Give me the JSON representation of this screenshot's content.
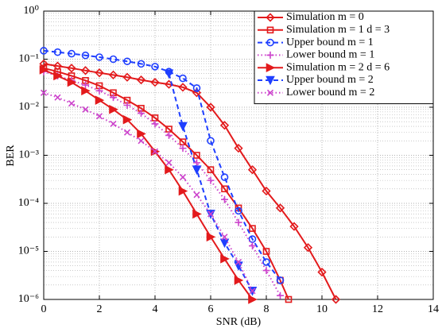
{
  "chart_data": {
    "type": "line",
    "x_label": "SNR (dB)",
    "y_label": "BER",
    "xlim": [
      0,
      14
    ],
    "xticks": [
      0,
      2,
      4,
      6,
      8,
      10,
      12,
      14
    ],
    "ylim": [
      1e-06,
      1
    ],
    "log_y": true,
    "grid": true,
    "legend": "upper right",
    "yticks": [
      {
        "value": 1,
        "label": "10⁰"
      },
      {
        "value": 0.1,
        "label": "10⁻¹"
      },
      {
        "value": 0.01,
        "label": "10⁻²"
      },
      {
        "value": 0.001,
        "label": "10⁻³"
      },
      {
        "value": 0.0001,
        "label": "10⁻⁴"
      },
      {
        "value": 1e-05,
        "label": "10⁻⁵"
      },
      {
        "value": 1e-06,
        "label": "10⁻⁶"
      }
    ],
    "series": [
      {
        "name": "Simulation m = 0",
        "color": "#e31a1c",
        "marker": "diamond",
        "linestyle": "solid",
        "x": [
          0,
          0.5,
          1,
          1.5,
          2,
          2.5,
          3,
          3.5,
          4,
          4.5,
          5,
          5.5,
          6,
          6.5,
          7,
          7.5,
          8,
          8.5,
          9,
          9.5,
          10,
          10.5
        ],
        "values": [
          0.08,
          0.072,
          0.065,
          0.058,
          0.052,
          0.047,
          0.042,
          0.037,
          0.033,
          0.03,
          0.026,
          0.02,
          0.01,
          0.0042,
          0.0014,
          0.0005,
          0.00018,
          8e-05,
          3.3e-05,
          1.2e-05,
          3.7e-06,
          1e-06
        ]
      },
      {
        "name": "Simulation m = 1 d = 3",
        "color": "#e31a1c",
        "marker": "square",
        "linestyle": "solid",
        "x": [
          0,
          0.5,
          1,
          1.5,
          2,
          2.5,
          3,
          3.5,
          4,
          4.5,
          5,
          5.5,
          6,
          6.5,
          7,
          7.5,
          8,
          8.5,
          8.8
        ],
        "values": [
          0.065,
          0.055,
          0.045,
          0.036,
          0.028,
          0.02,
          0.014,
          0.0095,
          0.006,
          0.0035,
          0.0019,
          0.001,
          0.0005,
          0.0002,
          8e-05,
          3e-05,
          1e-05,
          2.5e-06,
          1e-06
        ]
      },
      {
        "name": "Upper bound m = 1",
        "color": "#1f3fff",
        "marker": "circle",
        "linestyle": "dashed",
        "x": [
          0,
          0.5,
          1,
          1.5,
          2,
          2.5,
          3,
          3.5,
          4,
          4.5,
          5,
          5.5,
          6,
          6.5,
          7,
          7.5,
          8,
          8.5
        ],
        "values": [
          0.15,
          0.14,
          0.13,
          0.12,
          0.11,
          0.1,
          0.09,
          0.08,
          0.07,
          0.055,
          0.04,
          0.025,
          0.002,
          0.00035,
          7e-05,
          1.8e-05,
          6e-06,
          2.5e-06
        ]
      },
      {
        "name": "Lower bound m = 1",
        "color": "#cc44cc",
        "marker": "plus",
        "linestyle": "dotted",
        "x": [
          0,
          0.5,
          1,
          1.5,
          2,
          2.5,
          3,
          3.5,
          4,
          4.5,
          5,
          5.5,
          6,
          6.5,
          7,
          7.5,
          8,
          8.5
        ],
        "values": [
          0.055,
          0.045,
          0.036,
          0.029,
          0.022,
          0.016,
          0.011,
          0.0075,
          0.0045,
          0.0026,
          0.0014,
          0.0007,
          0.0003,
          0.00012,
          4e-05,
          1.3e-05,
          4e-06,
          1.2e-06
        ]
      },
      {
        "name": "Simulation m = 2 d = 6",
        "color": "#e31a1c",
        "marker": "triangle-right",
        "linestyle": "solid",
        "x": [
          0,
          0.5,
          1,
          1.5,
          2,
          2.5,
          3,
          3.5,
          4,
          4.5,
          5,
          5.5,
          6,
          6.5,
          7,
          7.5
        ],
        "values": [
          0.06,
          0.045,
          0.033,
          0.022,
          0.014,
          0.009,
          0.0055,
          0.0028,
          0.0012,
          0.0005,
          0.00018,
          6e-05,
          2e-05,
          7e-06,
          2.5e-06,
          1e-06
        ]
      },
      {
        "name": "Upper bound m = 2",
        "color": "#1f3fff",
        "marker": "triangle-down",
        "linestyle": "dashed",
        "x": [
          4.5,
          5,
          5.5,
          6,
          6.5,
          7,
          7.5
        ],
        "values": [
          0.05,
          0.004,
          0.0005,
          6e-05,
          1.5e-05,
          5e-06,
          1.5e-06
        ]
      },
      {
        "name": "Lower bound m = 2",
        "color": "#cc44cc",
        "marker": "x",
        "linestyle": "dotted",
        "x": [
          0,
          0.5,
          1,
          1.5,
          2,
          2.5,
          3,
          3.5,
          4,
          4.5,
          5,
          5.5,
          6,
          6.5,
          7,
          7.5
        ],
        "values": [
          0.02,
          0.016,
          0.012,
          0.009,
          0.0065,
          0.0045,
          0.003,
          0.002,
          0.0012,
          0.0007,
          0.00035,
          0.00015,
          6e-05,
          2e-05,
          6e-06,
          1.5e-06
        ]
      }
    ]
  }
}
